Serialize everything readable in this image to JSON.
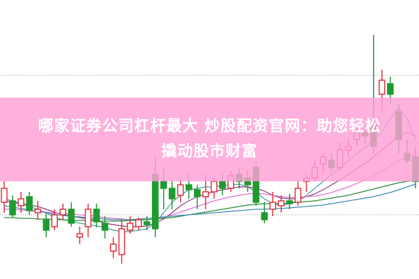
{
  "banner": {
    "line1": "哪家证券公司杠杆最大 炒股配资官网：助您轻松",
    "line2": "撬动股市财富"
  },
  "colors": {
    "up": "#e0303a",
    "down": "#1e9a2e",
    "grid": "#999999",
    "ma5": "#4a9a9a",
    "ma10": "#8a3a7a",
    "ma20": "#e070d0",
    "ma60": "#2a8a3a",
    "ma120": "#3a8ab0",
    "banner": "#ffa0d7"
  },
  "chart_data": {
    "type": "candlestick",
    "grid": true,
    "gridlines": [
      292,
      195,
      92
    ],
    "candles": [
      [
        110,
        130,
        140,
        95
      ],
      [
        112,
        92,
        120,
        88
      ],
      [
        105,
        115,
        125,
        95
      ],
      [
        118,
        98,
        125,
        92
      ],
      [
        95,
        100,
        112,
        85
      ],
      [
        85,
        70,
        95,
        60
      ],
      [
        75,
        92,
        100,
        70
      ],
      [
        92,
        100,
        108,
        84
      ],
      [
        100,
        80,
        110,
        75
      ],
      [
        60,
        65,
        75,
        50
      ],
      [
        75,
        100,
        108,
        60
      ],
      [
        100,
        82,
        108,
        74
      ],
      [
        80,
        70,
        90,
        58
      ],
      [
        40,
        50,
        60,
        30
      ],
      [
        35,
        72,
        85,
        22
      ],
      [
        70,
        80,
        90,
        65
      ],
      [
        75,
        85,
        88,
        70
      ],
      [
        82,
        78,
        90,
        70
      ],
      [
        150,
        72,
        175,
        60
      ],
      [
        140,
        130,
        160,
        100
      ],
      [
        130,
        115,
        140,
        100
      ],
      [
        120,
        135,
        142,
        110
      ],
      [
        135,
        128,
        150,
        115
      ],
      [
        128,
        118,
        135,
        100
      ],
      [
        118,
        125,
        150,
        100
      ],
      [
        125,
        140,
        145,
        115
      ],
      [
        140,
        130,
        150,
        120
      ],
      [
        130,
        148,
        155,
        125
      ],
      [
        150,
        140,
        160,
        130
      ],
      [
        145,
        135,
        155,
        125
      ],
      [
        160,
        110,
        168,
        105
      ],
      [
        95,
        85,
        110,
        80
      ],
      [
        100,
        110,
        125,
        90
      ],
      [
        105,
        112,
        120,
        95
      ],
      [
        112,
        108,
        122,
        100
      ],
      [
        110,
        130,
        140,
        105
      ],
      [
        140,
        145,
        150,
        125
      ],
      [
        145,
        160,
        170,
        140
      ],
      [
        165,
        175,
        180,
        150
      ],
      [
        170,
        160,
        180,
        155
      ],
      [
        160,
        185,
        195,
        155
      ],
      [
        185,
        190,
        200,
        175
      ],
      [
        200,
        210,
        220,
        190
      ],
      [
        210,
        205,
        220,
        195
      ],
      [
        220,
        190,
        350,
        180
      ],
      [
        265,
        285,
        300,
        240
      ],
      [
        280,
        265,
        290,
        250
      ],
      [
        240,
        200,
        250,
        180
      ],
      [
        180,
        170,
        200,
        165
      ],
      [
        175,
        140,
        190,
        130
      ]
    ],
    "ma": [
      {
        "values": [
          115,
          112,
          108,
          104,
          100,
          95,
          88,
          85,
          83,
          80,
          78,
          76,
          74,
          70,
          68,
          68,
          70,
          72,
          80,
          95,
          110,
          120,
          128,
          130,
          132,
          132,
          134,
          135,
          136,
          132,
          125,
          115,
          108,
          106,
          108,
          112,
          120,
          130,
          140,
          150,
          160,
          170,
          180,
          188,
          200,
          210,
          230,
          245,
          230,
          200
        ]
      },
      {
        "values": [
          112,
          110,
          108,
          106,
          104,
          100,
          96,
          92,
          90,
          88,
          86,
          84,
          80,
          78,
          76,
          75,
          75,
          76,
          80,
          86,
          95,
          105,
          112,
          118,
          122,
          125,
          128,
          130,
          132,
          132,
          130,
          126,
          120,
          116,
          115,
          115,
          118,
          122,
          128,
          135,
          142,
          150,
          158,
          166,
          175,
          185,
          195,
          205,
          210,
          205
        ]
      },
      {
        "values": [
          100,
          100,
          99,
          98,
          97,
          96,
          95,
          94,
          93,
          92,
          91,
          90,
          88,
          87,
          86,
          85,
          85,
          85,
          86,
          88,
          92,
          96,
          100,
          104,
          108,
          112,
          115,
          118,
          120,
          122,
          123,
          122,
          120,
          118,
          117,
          117,
          118,
          119,
          121,
          124,
          128,
          132,
          137,
          142,
          148,
          155,
          162,
          170,
          175,
          178
        ]
      },
      {
        "values": [
          88,
          88,
          87,
          87,
          86,
          86,
          85,
          85,
          84,
          84,
          84,
          83,
          83,
          83,
          83,
          84,
          84,
          85,
          86,
          87,
          88,
          90,
          92,
          94,
          96,
          98,
          100,
          102,
          104,
          106,
          107,
          108,
          108,
          108,
          109,
          110,
          111,
          112,
          114,
          116,
          118,
          120,
          123,
          126,
          129,
          132,
          135,
          138,
          140,
          142
        ]
      },
      {
        "values": [
          105,
          103,
          101,
          99,
          97,
          95,
          93,
          91,
          90,
          89,
          88,
          87,
          86,
          85,
          85,
          85,
          86,
          87,
          88,
          89,
          90,
          91,
          92,
          93,
          94,
          95,
          96,
          97,
          98,
          99,
          100,
          100,
          101,
          101,
          102,
          103,
          104,
          105,
          106,
          108,
          110,
          112,
          114,
          116,
          118,
          121,
          124,
          128,
          132,
          136
        ]
      }
    ]
  }
}
